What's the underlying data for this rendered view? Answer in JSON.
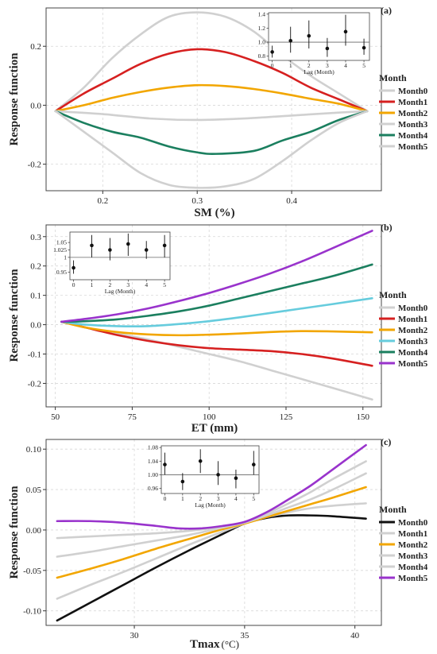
{
  "colors": {
    "grey": "#d0d0d0",
    "red": "#d62020",
    "orange": "#f2a600",
    "cyan": "#66ccdd",
    "green": "#1b7f5f",
    "purple": "#9933cc",
    "black": "#111111"
  },
  "chart_data": [
    {
      "type": "line",
      "panel_label": "(a)",
      "xlabel": "SM (%)",
      "ylabel": "Response function",
      "xlim": [
        0.14,
        0.495
      ],
      "ylim": [
        -0.29,
        0.33
      ],
      "xticks": [
        0.2,
        0.3,
        0.4
      ],
      "xtick_labels": [
        "0.2",
        "0.3",
        "0.4"
      ],
      "yticks": [
        -0.2,
        0.0,
        0.2
      ],
      "ytick_labels": [
        "-0.2",
        "0.0",
        "0.2"
      ],
      "grid": true,
      "legend": {
        "title": "Month",
        "position": "right"
      },
      "series": [
        {
          "name": "Month0",
          "color": "grey",
          "x": [
            0.15,
            0.18,
            0.21,
            0.24,
            0.27,
            0.3,
            0.33,
            0.36,
            0.39,
            0.42,
            0.45,
            0.48
          ],
          "y": [
            -0.02,
            0.06,
            0.16,
            0.24,
            0.3,
            0.315,
            0.3,
            0.25,
            0.17,
            0.1,
            0.04,
            -0.02
          ]
        },
        {
          "name": "Month1",
          "color": "red",
          "x": [
            0.15,
            0.18,
            0.21,
            0.24,
            0.27,
            0.3,
            0.33,
            0.36,
            0.39,
            0.42,
            0.45,
            0.48
          ],
          "y": [
            -0.02,
            0.04,
            0.09,
            0.14,
            0.175,
            0.19,
            0.18,
            0.15,
            0.11,
            0.06,
            0.02,
            -0.02
          ]
        },
        {
          "name": "Month2",
          "color": "orange",
          "x": [
            0.15,
            0.18,
            0.21,
            0.24,
            0.27,
            0.3,
            0.33,
            0.36,
            0.39,
            0.42,
            0.45,
            0.48
          ],
          "y": [
            -0.02,
            0.0,
            0.025,
            0.045,
            0.06,
            0.068,
            0.065,
            0.055,
            0.04,
            0.022,
            0.005,
            -0.02
          ]
        },
        {
          "name": "Month3",
          "color": "grey",
          "x": [
            0.15,
            0.2,
            0.25,
            0.3,
            0.35,
            0.4,
            0.45,
            0.48
          ],
          "y": [
            -0.02,
            -0.03,
            -0.045,
            -0.05,
            -0.045,
            -0.035,
            -0.025,
            -0.02
          ]
        },
        {
          "name": "Month4",
          "color": "green",
          "x": [
            0.15,
            0.18,
            0.21,
            0.24,
            0.27,
            0.3,
            0.32,
            0.36,
            0.39,
            0.42,
            0.45,
            0.48
          ],
          "y": [
            -0.02,
            -0.06,
            -0.09,
            -0.11,
            -0.14,
            -0.16,
            -0.165,
            -0.155,
            -0.12,
            -0.09,
            -0.05,
            -0.02
          ]
        },
        {
          "name": "Month5",
          "color": "grey",
          "x": [
            0.15,
            0.18,
            0.21,
            0.24,
            0.27,
            0.3,
            0.33,
            0.36,
            0.39,
            0.42,
            0.45,
            0.48
          ],
          "y": [
            -0.02,
            -0.09,
            -0.16,
            -0.23,
            -0.27,
            -0.28,
            -0.275,
            -0.25,
            -0.19,
            -0.12,
            -0.06,
            -0.02
          ]
        }
      ],
      "inset": {
        "xlabel": "Lag (Month)",
        "xlim": [
          -0.2,
          5.3
        ],
        "ylim": [
          0.74,
          1.42
        ],
        "xticks": [
          0,
          1,
          2,
          3,
          4,
          5
        ],
        "xtick_labels": [
          "0",
          "1",
          "2",
          "3",
          "4",
          "5"
        ],
        "yticks": [
          0.8,
          1.0,
          1.2,
          1.4
        ],
        "ytick_labels": [
          "0.8",
          "1.0",
          "1.2",
          "1.4"
        ],
        "ref": 1.0,
        "points": [
          {
            "lag": 0,
            "value": 0.86,
            "low": 0.78,
            "high": 0.95
          },
          {
            "lag": 1,
            "value": 1.02,
            "low": 0.85,
            "high": 1.22
          },
          {
            "lag": 2,
            "value": 1.09,
            "low": 0.91,
            "high": 1.31
          },
          {
            "lag": 3,
            "value": 0.91,
            "low": 0.79,
            "high": 1.06
          },
          {
            "lag": 4,
            "value": 1.15,
            "low": 0.95,
            "high": 1.39
          },
          {
            "lag": 5,
            "value": 0.92,
            "low": 0.82,
            "high": 1.05
          }
        ]
      }
    },
    {
      "type": "line",
      "panel_label": "(b)",
      "xlabel": "ET (mm)",
      "ylabel": "Response function",
      "xlim": [
        47,
        156
      ],
      "ylim": [
        -0.28,
        0.34
      ],
      "xticks": [
        50,
        75,
        100,
        125,
        150
      ],
      "xtick_labels": [
        "50",
        "75",
        "100",
        "125",
        "150"
      ],
      "yticks": [
        -0.2,
        -0.1,
        0.0,
        0.1,
        0.2,
        0.3
      ],
      "ytick_labels": [
        "-0.2",
        "-0.1",
        "0.0",
        "0.1",
        "0.2",
        "0.3"
      ],
      "grid": true,
      "legend": {
        "title": "Month",
        "position": "right"
      },
      "series": [
        {
          "name": "Month0",
          "color": "grey",
          "x": [
            52,
            60,
            70,
            80,
            90,
            100,
            110,
            120,
            130,
            140,
            153
          ],
          "y": [
            0.01,
            -0.01,
            -0.03,
            -0.05,
            -0.075,
            -0.1,
            -0.125,
            -0.155,
            -0.185,
            -0.215,
            -0.255
          ]
        },
        {
          "name": "Month1",
          "color": "red",
          "x": [
            52,
            60,
            70,
            80,
            90,
            100,
            110,
            120,
            130,
            140,
            153
          ],
          "y": [
            0.01,
            -0.01,
            -0.035,
            -0.055,
            -0.07,
            -0.08,
            -0.085,
            -0.09,
            -0.1,
            -0.115,
            -0.14
          ]
        },
        {
          "name": "Month2",
          "color": "orange",
          "x": [
            52,
            60,
            70,
            80,
            90,
            100,
            110,
            120,
            130,
            140,
            153
          ],
          "y": [
            0.01,
            -0.01,
            -0.025,
            -0.033,
            -0.036,
            -0.034,
            -0.03,
            -0.025,
            -0.022,
            -0.023,
            -0.026
          ]
        },
        {
          "name": "Month3",
          "color": "cyan",
          "x": [
            52,
            60,
            70,
            80,
            90,
            100,
            110,
            120,
            130,
            140,
            153
          ],
          "y": [
            0.01,
            0.0,
            -0.005,
            -0.005,
            0.002,
            0.012,
            0.025,
            0.04,
            0.055,
            0.07,
            0.09
          ]
        },
        {
          "name": "Month4",
          "color": "green",
          "x": [
            52,
            60,
            70,
            80,
            90,
            100,
            110,
            120,
            130,
            140,
            153
          ],
          "y": [
            0.01,
            0.012,
            0.018,
            0.03,
            0.045,
            0.065,
            0.09,
            0.115,
            0.14,
            0.165,
            0.205
          ]
        },
        {
          "name": "Month5",
          "color": "purple",
          "x": [
            52,
            60,
            70,
            80,
            90,
            100,
            110,
            120,
            130,
            140,
            153
          ],
          "y": [
            0.01,
            0.02,
            0.035,
            0.055,
            0.08,
            0.108,
            0.14,
            0.175,
            0.215,
            0.26,
            0.32
          ]
        }
      ],
      "inset": {
        "xlabel": "Lag (Month)",
        "xlim": [
          -0.2,
          5.3
        ],
        "ylim": [
          0.925,
          1.085
        ],
        "xticks": [
          0,
          1,
          2,
          3,
          4,
          5
        ],
        "xtick_labels": [
          "0",
          "1",
          "2",
          "3",
          "4",
          "5"
        ],
        "yticks": [
          0.95,
          1.0,
          1.025,
          1.05
        ],
        "ytick_labels": [
          "0.95",
          "1",
          "1.025",
          "1.05"
        ],
        "ref": 1.0,
        "points": [
          {
            "lag": 0,
            "value": 0.965,
            "low": 0.945,
            "high": 0.99
          },
          {
            "lag": 1,
            "value": 1.04,
            "low": 1.0,
            "high": 1.075
          },
          {
            "lag": 2,
            "value": 1.025,
            "low": 0.99,
            "high": 1.065
          },
          {
            "lag": 3,
            "value": 1.045,
            "low": 1.005,
            "high": 1.08
          },
          {
            "lag": 4,
            "value": 1.025,
            "low": 0.995,
            "high": 1.055
          },
          {
            "lag": 5,
            "value": 1.04,
            "low": 1.0,
            "high": 1.075
          }
        ]
      }
    },
    {
      "type": "line",
      "panel_label": "(c)",
      "xlabel": "Tmax",
      "xlabel_unit": "(°C)",
      "ylabel": "Response function",
      "xlim": [
        26.0,
        41.2
      ],
      "ylim": [
        -0.118,
        0.112
      ],
      "xticks": [
        30,
        35,
        40
      ],
      "xtick_labels": [
        "30",
        "35",
        "40"
      ],
      "yticks": [
        -0.1,
        -0.05,
        0.0,
        0.05,
        0.1
      ],
      "ytick_labels": [
        "-0.10",
        "-0.05",
        "0.00",
        "0.05",
        "0.10"
      ],
      "grid": true,
      "legend": {
        "title": "Month",
        "position": "right"
      },
      "series": [
        {
          "name": "Month0",
          "color": "black",
          "x": [
            26.5,
            28,
            29.5,
            31,
            32.5,
            34,
            35,
            36,
            37,
            38,
            39,
            40.5
          ],
          "y": [
            -0.112,
            -0.09,
            -0.068,
            -0.046,
            -0.025,
            -0.005,
            0.008,
            0.015,
            0.018,
            0.018,
            0.017,
            0.014
          ]
        },
        {
          "name": "Month1",
          "color": "grey",
          "x": [
            26.5,
            28,
            29.5,
            31,
            32.5,
            34,
            35,
            36,
            37,
            38,
            39,
            40.5
          ],
          "y": [
            -0.085,
            -0.068,
            -0.052,
            -0.035,
            -0.018,
            -0.002,
            0.008,
            0.016,
            0.022,
            0.027,
            0.03,
            0.033
          ]
        },
        {
          "name": "Month2",
          "color": "orange",
          "x": [
            26.5,
            28,
            29.5,
            31,
            32.5,
            34,
            35,
            36,
            37,
            38,
            39,
            40.5
          ],
          "y": [
            -0.059,
            -0.048,
            -0.036,
            -0.023,
            -0.011,
            0.001,
            0.008,
            0.016,
            0.024,
            0.032,
            0.04,
            0.053
          ]
        },
        {
          "name": "Month3",
          "color": "grey",
          "x": [
            26.5,
            28,
            29.5,
            31,
            32.5,
            34,
            35,
            36,
            37,
            38,
            39,
            40.5
          ],
          "y": [
            -0.033,
            -0.027,
            -0.02,
            -0.013,
            -0.006,
            0.003,
            0.009,
            0.018,
            0.028,
            0.038,
            0.05,
            0.07
          ]
        },
        {
          "name": "Month4",
          "color": "grey",
          "x": [
            26.5,
            28,
            29.5,
            31,
            32.5,
            34,
            35,
            36,
            37,
            38,
            39,
            40.5
          ],
          "y": [
            -0.01,
            -0.008,
            -0.006,
            -0.004,
            -0.001,
            0.004,
            0.009,
            0.02,
            0.033,
            0.047,
            0.063,
            0.085
          ]
        },
        {
          "name": "Month5",
          "color": "purple",
          "x": [
            26.5,
            28,
            29.5,
            31,
            32,
            33,
            34,
            35,
            36,
            37,
            38,
            39,
            40.5
          ],
          "y": [
            0.011,
            0.011,
            0.009,
            0.005,
            0.002,
            0.002,
            0.005,
            0.01,
            0.022,
            0.038,
            0.055,
            0.075,
            0.105
          ]
        }
      ],
      "inset": {
        "xlabel": "Lag (Month)",
        "xlim": [
          -0.2,
          5.3
        ],
        "ylim": [
          0.945,
          1.085
        ],
        "xticks": [
          0,
          1,
          2,
          3,
          4,
          5
        ],
        "xtick_labels": [
          "0",
          "1",
          "2",
          "3",
          "4",
          "5"
        ],
        "yticks": [
          0.96,
          1.0,
          1.04,
          1.08
        ],
        "ytick_labels": [
          "0.96",
          "1.00",
          "1.04",
          "1.08"
        ],
        "ref": 1.0,
        "points": [
          {
            "lag": 0,
            "value": 1.03,
            "low": 1.0,
            "high": 1.065
          },
          {
            "lag": 1,
            "value": 0.98,
            "low": 0.955,
            "high": 1.005
          },
          {
            "lag": 2,
            "value": 1.04,
            "low": 1.005,
            "high": 1.075
          },
          {
            "lag": 3,
            "value": 1.0,
            "low": 0.97,
            "high": 1.04
          },
          {
            "lag": 4,
            "value": 0.99,
            "low": 0.96,
            "high": 1.015
          },
          {
            "lag": 5,
            "value": 1.03,
            "low": 1.0,
            "high": 1.07
          }
        ]
      }
    }
  ]
}
